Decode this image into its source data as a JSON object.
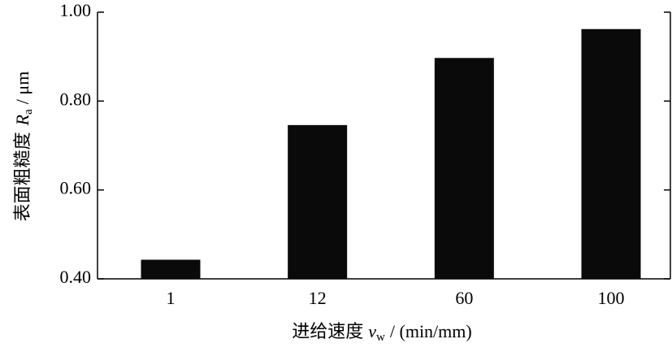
{
  "chart_data": {
    "type": "bar",
    "categories": [
      "1",
      "12",
      "60",
      "100"
    ],
    "values": [
      0.443,
      0.746,
      0.897,
      0.962
    ],
    "color": "#0a0a0a",
    "ylim": [
      0.4,
      1.0
    ],
    "yticks": [
      {
        "value": 0.4,
        "label": "0.40"
      },
      {
        "value": 0.6,
        "label": "0.60"
      },
      {
        "value": 0.8,
        "label": "0.80"
      },
      {
        "value": 1.0,
        "label": "1.00"
      }
    ],
    "x_label": [
      "进给速度",
      "v",
      "w",
      "/ (min/mm)"
    ],
    "y_label": [
      "表面粗糙度",
      "R",
      "a",
      "/ μm"
    ],
    "grid": false
  }
}
